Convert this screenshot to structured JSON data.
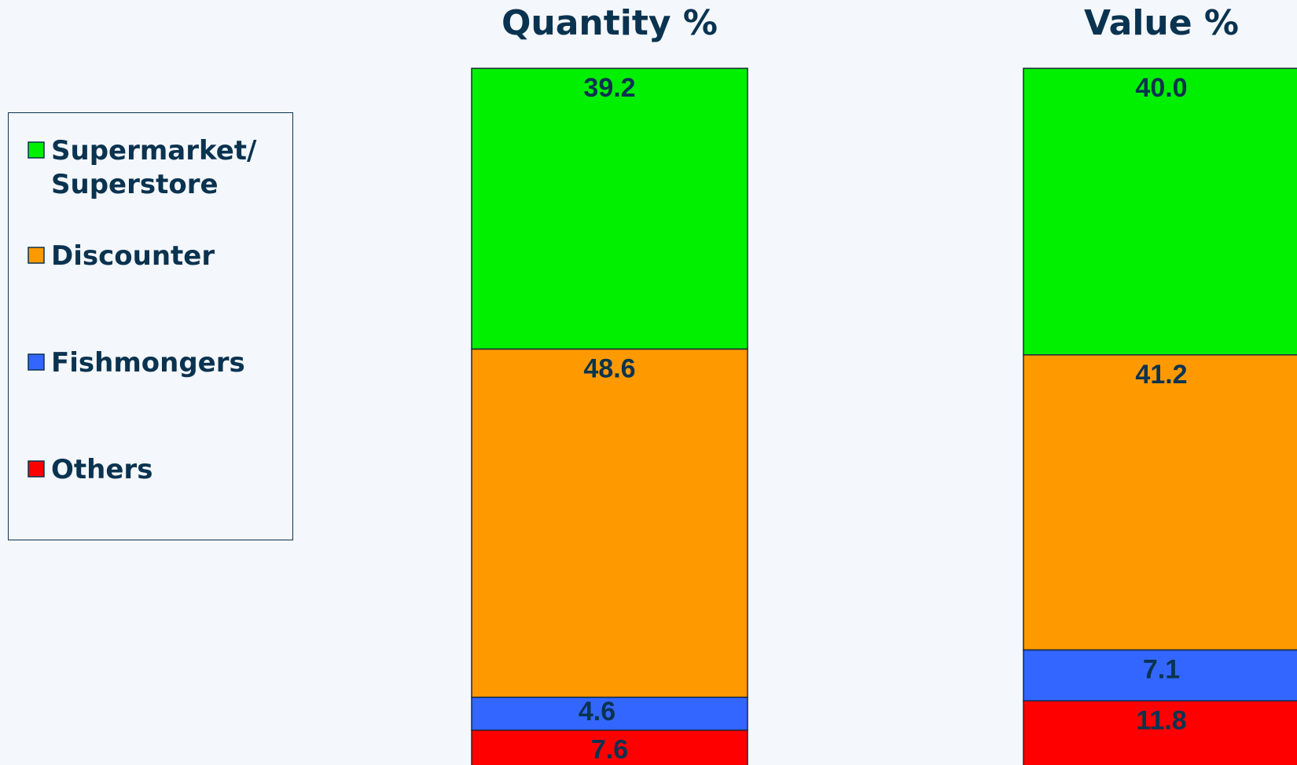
{
  "chart_data": {
    "type": "bar",
    "stacked": true,
    "orientation": "vertical",
    "categories": [
      "Quantity %",
      "Value %"
    ],
    "series": [
      {
        "name": "Supermarket/ Superstore",
        "label_lines": [
          "Supermarket/",
          "Superstore"
        ],
        "values": [
          39.2,
          40.0
        ],
        "labels": [
          "39.2",
          "40.0"
        ],
        "color": "#00f000"
      },
      {
        "name": "Discounter",
        "label_lines": [
          "Discounter"
        ],
        "values": [
          48.6,
          41.2
        ],
        "labels": [
          "48.6",
          "41.2"
        ],
        "color": "#ff9900"
      },
      {
        "name": "Fishmongers",
        "label_lines": [
          "Fishmongers"
        ],
        "values": [
          4.6,
          7.1
        ],
        "labels": [
          "4.6",
          "7.1"
        ],
        "color": "#3366ff"
      },
      {
        "name": "Others",
        "label_lines": [
          "Others"
        ],
        "values": [
          7.6,
          11.8
        ],
        "labels": [
          "7.6",
          "11.8"
        ],
        "color": "#ff0000"
      }
    ],
    "stack_order": "top-to-bottom",
    "ylim": [
      0,
      100
    ],
    "grid": false,
    "legend_position": "left"
  }
}
